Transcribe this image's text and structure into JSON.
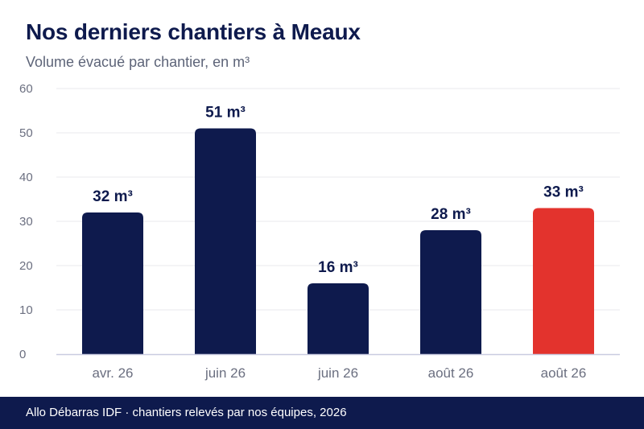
{
  "header": {
    "title": "Nos derniers chantiers à Meaux",
    "subtitle": "Volume évacué par chantier, en m³"
  },
  "footer": {
    "source": "Allo Débarras IDF · chantiers relevés par nos équipes, 2026"
  },
  "colors": {
    "bar": "#0e1a4d",
    "highlight": "#e3332d",
    "grid": "#e9e9ee",
    "axis": "#c9cbe0",
    "tick": "#6b6f80"
  },
  "chart_data": {
    "type": "bar",
    "title": "Nos derniers chantiers à Meaux",
    "subtitle": "Volume évacué par chantier, en m³",
    "categories": [
      "avr. 26",
      "juin 26",
      "juin 26",
      "août 26",
      "août 26"
    ],
    "values": [
      32,
      51,
      16,
      28,
      33
    ],
    "data_labels": [
      "32 m³",
      "51 m³",
      "16 m³",
      "28 m³",
      "33 m³"
    ],
    "highlight_index": 4,
    "ylim": [
      0,
      60
    ],
    "yticks": [
      0,
      10,
      20,
      30,
      40,
      50,
      60
    ],
    "grid": true,
    "legend": "none"
  }
}
